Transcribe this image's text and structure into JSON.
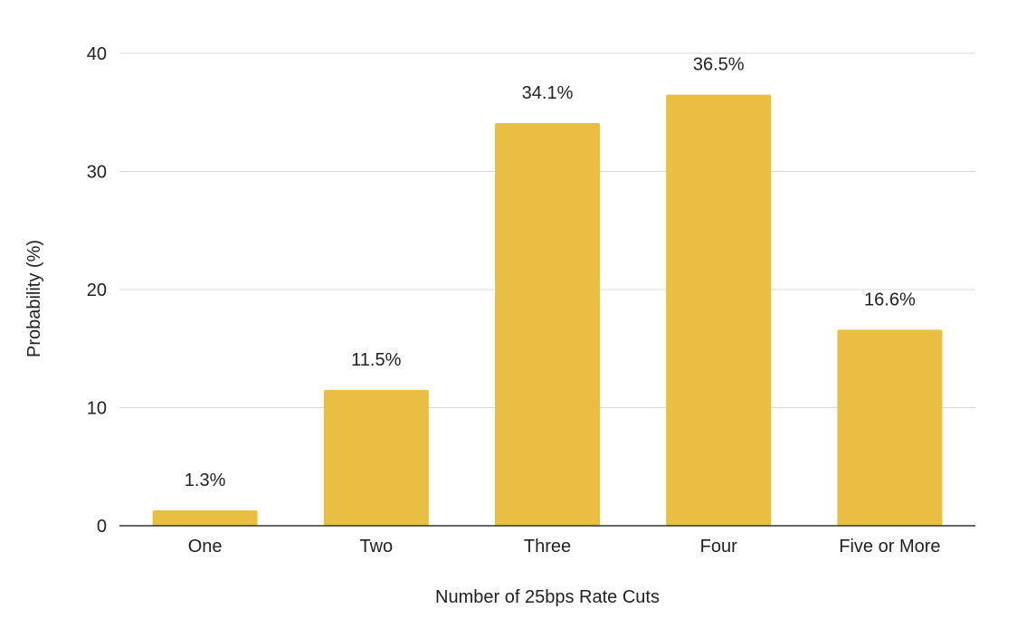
{
  "chart_data": {
    "type": "bar",
    "title": "",
    "xlabel": "Number of 25bps Rate Cuts",
    "ylabel": "Probability (%)",
    "categories": [
      "One",
      "Two",
      "Three",
      "Four",
      "Five or More"
    ],
    "values": [
      1.3,
      11.5,
      34.1,
      36.5,
      16.6
    ],
    "data_labels": [
      "1.3%",
      "11.5%",
      "34.1%",
      "36.5%",
      "16.6%"
    ],
    "y_ticks": [
      0,
      10,
      20,
      30,
      40
    ],
    "ylim": [
      0,
      40
    ],
    "grid": true,
    "legend": "none",
    "bar_color": "#E8BE43",
    "gridline_color": "#d9d9d9",
    "axis_color": "#333333"
  }
}
